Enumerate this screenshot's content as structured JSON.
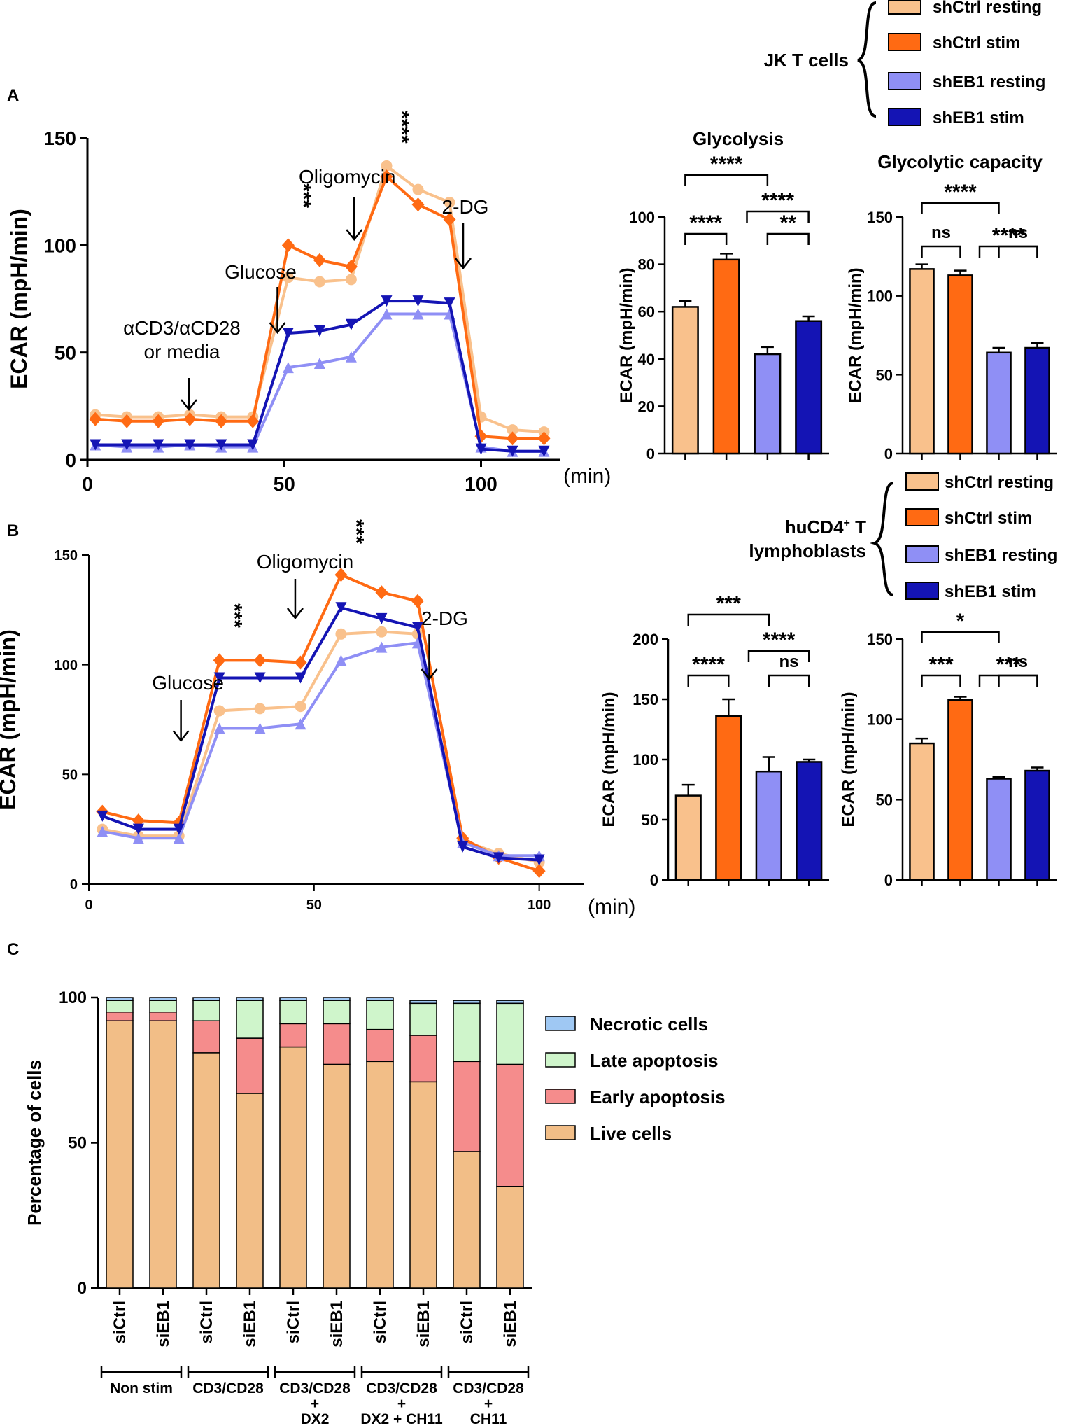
{
  "colors": {
    "sh_ctrl_resting": "#F9C18C",
    "sh_ctrl_stim": "#FF6A13",
    "sh_eb1_resting": "#8F8FF5",
    "sh_eb1_stim": "#1414B4",
    "necrotic": "#9FC8F3",
    "late": "#CFF5CB",
    "early": "#F58C8C",
    "live": "#F2BE87"
  },
  "panels": {
    "a": "A",
    "b": "B",
    "c": "C"
  },
  "legend_a": {
    "group": "JK T cells",
    "items": [
      "shCtrl resting",
      "shCtrl stim",
      "shEB1 resting",
      "shEB1 stim"
    ]
  },
  "legend_b": {
    "group_line1": "huCD4",
    "group_sup": "+",
    "group_tail": " T",
    "group_line2": "lymphoblasts",
    "items": [
      "shCtrl resting",
      "shCtrl stim",
      "shEB1 resting",
      "shEB1 stim"
    ]
  },
  "chart_data": [
    {
      "id": "A-line",
      "type": "line",
      "ylabel": "ECAR (mpH/min)",
      "xunit": "(min)",
      "xlim": [
        0,
        120
      ],
      "ylim": [
        0,
        150
      ],
      "xticks": [
        0,
        50,
        100
      ],
      "yticks": [
        0,
        50,
        100,
        150
      ],
      "x": [
        2,
        10,
        18,
        26,
        34,
        42,
        51,
        59,
        67,
        76,
        84,
        92,
        100,
        108,
        116
      ],
      "series": [
        {
          "name": "shCtrl resting",
          "values": [
            21,
            20,
            20,
            21,
            20,
            20,
            85,
            83,
            84,
            137,
            126,
            120,
            20,
            14,
            13
          ]
        },
        {
          "name": "shCtrl stim",
          "values": [
            19,
            18,
            18,
            19,
            18,
            18,
            100,
            93,
            90,
            132,
            119,
            112,
            11,
            10,
            10
          ]
        },
        {
          "name": "shEB1 resting",
          "values": [
            7,
            6,
            6,
            7,
            6,
            6,
            43,
            45,
            48,
            68,
            68,
            68,
            6,
            4,
            4
          ]
        },
        {
          "name": "shEB1 stim",
          "values": [
            7,
            7,
            7,
            7,
            7,
            7,
            59,
            60,
            63,
            74,
            74,
            73,
            5,
            4,
            4
          ]
        }
      ],
      "annotations": [
        {
          "text": "αCD3/αCD28",
          "line2": "or media",
          "x": 24
        },
        {
          "text": "Glucose",
          "x": 44
        },
        {
          "text": "Oligomycin",
          "x": 66
        },
        {
          "text": "2-DG",
          "x": 96
        }
      ],
      "significance": [
        {
          "x": 51,
          "text": "***"
        },
        {
          "x": 76,
          "text": "****"
        }
      ]
    },
    {
      "id": "A-glycolysis",
      "type": "bar",
      "title": "Glycolysis",
      "ylabel": "ECAR (mpH/min)",
      "categories": [
        "shCtrl resting",
        "shCtrl stim",
        "shEB1 resting",
        "shEB1 stim"
      ],
      "values": [
        62,
        82,
        42,
        56
      ],
      "errors": [
        2.5,
        2.5,
        3,
        2
      ],
      "ylim": [
        0,
        100
      ],
      "yticks": [
        0,
        20,
        40,
        60,
        80,
        100
      ],
      "significance": [
        {
          "text": "****",
          "from": 0,
          "to": 1,
          "level": 0
        },
        {
          "text": "**",
          "from": 2,
          "to": 3,
          "level": 0
        },
        {
          "text": "****",
          "from": 1.5,
          "to": 3,
          "level": 1
        },
        {
          "text": "****",
          "from": 0,
          "to": 2,
          "level": 2
        }
      ]
    },
    {
      "id": "A-capacity",
      "type": "bar",
      "title": "Glycolytic capacity",
      "ylabel": "ECAR (mpH/min)",
      "categories": [
        "shCtrl resting",
        "shCtrl stim",
        "shEB1 resting",
        "shEB1 stim"
      ],
      "values": [
        117,
        113,
        64,
        67
      ],
      "errors": [
        3,
        3,
        3,
        3
      ],
      "ylim": [
        0,
        150
      ],
      "yticks": [
        0,
        50,
        100,
        150
      ],
      "significance": [
        {
          "text": "ns",
          "from": 0,
          "to": 1,
          "level": 0
        },
        {
          "text": "ns",
          "from": 2,
          "to": 3,
          "level": 0
        },
        {
          "text": "****",
          "from": 1.5,
          "to": 3,
          "level": 1
        },
        {
          "text": "****",
          "from": 0,
          "to": 2,
          "level": 2
        }
      ]
    },
    {
      "id": "B-line",
      "type": "line",
      "ylabel": "ECAR (mpH/min)",
      "xunit": "(min)",
      "xlim": [
        0,
        110
      ],
      "ylim": [
        0,
        150
      ],
      "xticks": [
        0,
        50,
        100
      ],
      "yticks": [
        0,
        50,
        100,
        150
      ],
      "x": [
        3,
        11,
        20,
        29,
        38,
        47,
        56,
        65,
        73,
        83,
        91,
        100
      ],
      "series": [
        {
          "name": "shCtrl resting",
          "values": [
            25,
            22,
            22,
            79,
            80,
            81,
            114,
            115,
            114,
            20,
            14,
            10
          ]
        },
        {
          "name": "shCtrl stim",
          "values": [
            33,
            29,
            28,
            102,
            102,
            101,
            141,
            133,
            129,
            21,
            12,
            6
          ]
        },
        {
          "name": "shEB1 resting",
          "values": [
            24,
            21,
            21,
            71,
            71,
            73,
            102,
            108,
            110,
            19,
            13,
            13
          ]
        },
        {
          "name": "shEB1 stim",
          "values": [
            31,
            25,
            25,
            94,
            94,
            94,
            126,
            121,
            117,
            17,
            12,
            11
          ]
        }
      ],
      "annotations": [
        {
          "text": "Glucose",
          "x": 22
        },
        {
          "text": "Oligomycin",
          "x": 48
        },
        {
          "text": "2-DG",
          "x": 79
        }
      ],
      "significance": [
        {
          "x": 29,
          "text": "***"
        },
        {
          "x": 56,
          "text": "***"
        }
      ]
    },
    {
      "id": "B-glycolysis",
      "type": "bar",
      "ylabel": "ECAR (mpH/min)",
      "categories": [
        "shCtrl resting",
        "shCtrl stim",
        "shEB1 resting",
        "shEB1 stim"
      ],
      "values": [
        70,
        136,
        90,
        98
      ],
      "errors": [
        9,
        14,
        12,
        2
      ],
      "ylim": [
        0,
        200
      ],
      "yticks": [
        0,
        50,
        100,
        150,
        200
      ],
      "significance": [
        {
          "text": "****",
          "from": 0,
          "to": 1,
          "level": 0
        },
        {
          "text": "ns",
          "from": 2,
          "to": 3,
          "level": 0
        },
        {
          "text": "****",
          "from": 1.5,
          "to": 3,
          "level": 1
        },
        {
          "text": "***",
          "from": 0,
          "to": 2,
          "level": 2
        }
      ]
    },
    {
      "id": "B-capacity",
      "type": "bar",
      "ylabel": "ECAR (mpH/min)",
      "categories": [
        "shCtrl resting",
        "shCtrl stim",
        "shEB1 resting",
        "shEB1 stim"
      ],
      "values": [
        85,
        112,
        63,
        68
      ],
      "errors": [
        3,
        2,
        1,
        2
      ],
      "ylim": [
        0,
        150
      ],
      "yticks": [
        0,
        50,
        100,
        150
      ],
      "significance": [
        {
          "text": "***",
          "from": 0,
          "to": 1,
          "level": 0
        },
        {
          "text": "ns",
          "from": 2,
          "to": 3,
          "level": 0
        },
        {
          "text": "***",
          "from": 1.5,
          "to": 3,
          "level": 1
        },
        {
          "text": "*",
          "from": 0,
          "to": 2,
          "level": 2
        }
      ]
    },
    {
      "id": "C-stacked",
      "type": "bar",
      "stacked": true,
      "ylabel": "Percentage of cells",
      "ylim": [
        0,
        100
      ],
      "yticks": [
        0,
        50,
        100
      ],
      "categories": [
        "siCtrl",
        "siEB1",
        "siCtrl",
        "siEB1",
        "siCtrl",
        "siEB1",
        "siCtrl",
        "siEB1",
        "siCtrl",
        "siEB1"
      ],
      "groups": [
        {
          "line1": "Non stim",
          "line2": "",
          "line3": ""
        },
        {
          "line1": "CD3/CD28",
          "line2": "",
          "line3": ""
        },
        {
          "line1": "CD3/CD28",
          "line2": "+",
          "line3": "DX2"
        },
        {
          "line1": "CD3/CD28",
          "line2": "+",
          "line3": "DX2 + CH11"
        },
        {
          "line1": "CD3/CD28",
          "line2": "+",
          "line3": "CH11"
        }
      ],
      "series": [
        {
          "name": "Live cells",
          "values": [
            92,
            92,
            81,
            67,
            83,
            77,
            78,
            71,
            47,
            35
          ]
        },
        {
          "name": "Early apoptosis",
          "values": [
            3,
            3,
            11,
            19,
            8,
            14,
            11,
            16,
            31,
            42
          ]
        },
        {
          "name": "Late apoptosis",
          "values": [
            4,
            4,
            7,
            13,
            8,
            8,
            10,
            11,
            20,
            21
          ]
        },
        {
          "name": "Necrotic cells",
          "values": [
            1,
            1,
            1,
            1,
            1,
            1,
            1,
            1,
            1,
            1
          ]
        }
      ],
      "legend": [
        "Necrotic cells",
        "Late apoptosis",
        "Early apoptosis",
        "Live cells"
      ]
    }
  ]
}
